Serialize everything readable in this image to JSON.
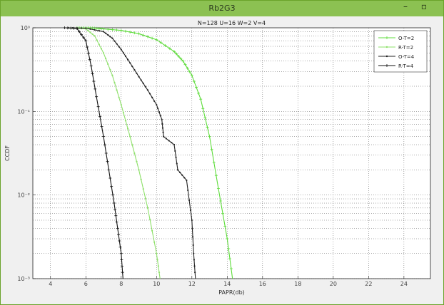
{
  "window": {
    "title": "Rb2G3",
    "minimize_glyph": "–",
    "maximize_glyph": "▫"
  },
  "chart_data": {
    "type": "line",
    "title": "N=128 U=16 W=2 V=4",
    "xlabel": "PAPR(db)",
    "ylabel": "CCDF",
    "xlim": [
      3,
      25.5
    ],
    "ylim": [
      0.001,
      1
    ],
    "yscale": "log",
    "xticks": [
      4,
      6,
      8,
      10,
      12,
      14,
      16,
      18,
      20,
      22,
      24
    ],
    "yticks": [
      0.001,
      0.01,
      0.1,
      1
    ],
    "ytick_labels": [
      "10⁻³",
      "10⁻²",
      "10⁻¹",
      "10⁰"
    ],
    "grid": true,
    "legend_position": "top-right",
    "series": [
      {
        "name": "O-T=2",
        "color": "#5fdc3c",
        "marker": "plus",
        "points": [
          [
            5.5,
            1
          ],
          [
            6.0,
            1
          ],
          [
            6.5,
            0.99
          ],
          [
            7.0,
            0.97
          ],
          [
            8.0,
            0.93
          ],
          [
            9.0,
            0.85
          ],
          [
            10.0,
            0.72
          ],
          [
            11.0,
            0.52
          ],
          [
            11.5,
            0.4
          ],
          [
            12.0,
            0.27
          ],
          [
            12.5,
            0.14
          ],
          [
            13.0,
            0.05
          ],
          [
            13.5,
            0.012
          ],
          [
            14.0,
            0.003
          ],
          [
            14.3,
            0.001
          ]
        ]
      },
      {
        "name": "R-T=2",
        "color": "#8ee06a",
        "marker": "point",
        "points": [
          [
            5.0,
            1
          ],
          [
            6.0,
            0.97
          ],
          [
            6.5,
            0.8
          ],
          [
            7.0,
            0.5
          ],
          [
            7.5,
            0.27
          ],
          [
            8.0,
            0.12
          ],
          [
            8.5,
            0.05
          ],
          [
            9.0,
            0.02
          ],
          [
            9.5,
            0.007
          ],
          [
            10.0,
            0.002
          ],
          [
            10.2,
            0.001
          ]
        ]
      },
      {
        "name": "O-T=4",
        "color": "#222222",
        "marker": "point",
        "points": [
          [
            5.0,
            1
          ],
          [
            6.0,
            0.99
          ],
          [
            7.0,
            0.9
          ],
          [
            7.5,
            0.75
          ],
          [
            8.0,
            0.55
          ],
          [
            8.5,
            0.38
          ],
          [
            9.0,
            0.26
          ],
          [
            9.5,
            0.18
          ],
          [
            10.0,
            0.12
          ],
          [
            10.3,
            0.08
          ],
          [
            10.4,
            0.05
          ],
          [
            11.0,
            0.04
          ],
          [
            11.2,
            0.02
          ],
          [
            11.7,
            0.015
          ],
          [
            12.0,
            0.005
          ],
          [
            12.1,
            0.002
          ],
          [
            12.2,
            0.001
          ]
        ]
      },
      {
        "name": "R-T=4",
        "color": "#111111",
        "marker": "plus",
        "points": [
          [
            4.8,
            1
          ],
          [
            5.5,
            0.98
          ],
          [
            6.0,
            0.7
          ],
          [
            6.3,
            0.35
          ],
          [
            6.6,
            0.15
          ],
          [
            7.0,
            0.05
          ],
          [
            7.3,
            0.02
          ],
          [
            7.6,
            0.008
          ],
          [
            7.8,
            0.004
          ],
          [
            8.0,
            0.002
          ],
          [
            8.1,
            0.001
          ]
        ]
      }
    ]
  }
}
